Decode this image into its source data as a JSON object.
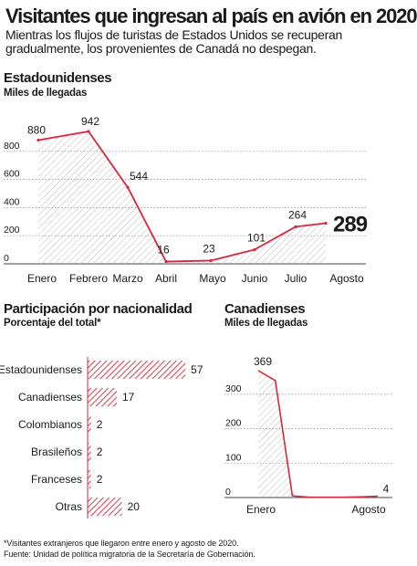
{
  "title": "Visitantes que ingresan al país en avión en 2020",
  "subtitle": "Mientras los flujos de turistas de Estados Unidos se recuperan gradualmente, los provenientes de Canadá no despegan.",
  "colors": {
    "accent": "#d7263d",
    "hatch": "#bdbdbd",
    "grid": "#888888",
    "text": "#1a1a1a"
  },
  "chart_data": [
    {
      "type": "area",
      "title": "Estadounidenses",
      "subtitle": "Miles de llegadas",
      "categories": [
        "Enero",
        "Febrero",
        "Marzo",
        "Abril",
        "Mayo",
        "Junio",
        "Julio",
        "Agosto"
      ],
      "values": [
        880,
        942,
        544,
        16,
        23,
        101,
        264,
        289
      ],
      "yticks": [
        0,
        200,
        400,
        600,
        800
      ],
      "ylim": [
        0,
        1000
      ],
      "highlight_last": true
    },
    {
      "type": "bar",
      "title": "Participación por nacionalidad",
      "subtitle": "Porcentaje del total*",
      "categories": [
        "Estadounidenses",
        "Canadienses",
        "Colombianos",
        "Brasileños",
        "Franceses",
        "Otras"
      ],
      "values": [
        57,
        17,
        2,
        2,
        2,
        20
      ],
      "xlim": [
        0,
        60
      ]
    },
    {
      "type": "area",
      "title": "Canadienses",
      "subtitle": "Miles de llegadas",
      "categories": [
        "Enero",
        "Febrero",
        "Marzo",
        "Abril",
        "Mayo",
        "Junio",
        "Julio",
        "Agosto"
      ],
      "xtick_labels": [
        "Enero",
        "Agosto"
      ],
      "values": [
        369,
        340,
        5,
        1,
        1,
        1,
        2,
        4
      ],
      "value_labels": {
        "0": "369",
        "7": "4"
      },
      "yticks": [
        0,
        100,
        200,
        300
      ],
      "ylim": [
        0,
        400
      ]
    }
  ],
  "footnotes": [
    "*Visitantes extranjeros que llegaron entre enero y agosto de 2020.",
    "Fuente: Unidad de política migratoria de la Secretaría de Gobernación."
  ]
}
